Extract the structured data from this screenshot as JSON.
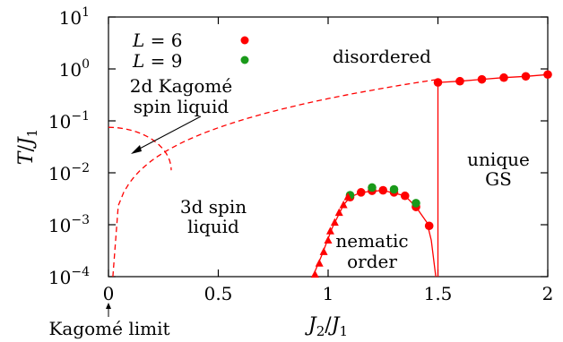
{
  "chart_data": {
    "type": "scatter",
    "xlabel": "J2/J1",
    "ylabel": "T/J1",
    "xlim": [
      0,
      2
    ],
    "ylim_log10": [
      -4,
      1
    ],
    "y_scale": "log",
    "grid": false,
    "legend_position": "top-left",
    "x_ticks": [
      "0",
      "0.5",
      "1",
      "1.5",
      "2"
    ],
    "y_ticks": [
      {
        "base": "10",
        "exp": "1"
      },
      {
        "base": "10",
        "exp": "0"
      },
      {
        "base": "10",
        "exp": "−1"
      },
      {
        "base": "10",
        "exp": "−2"
      },
      {
        "base": "10",
        "exp": "−3"
      },
      {
        "base": "10",
        "exp": "−4"
      }
    ],
    "series": [
      {
        "name": "L = 6",
        "color": "#ff0000",
        "marker": "circle",
        "points": [
          [
            1.1,
            0.0034
          ],
          [
            1.15,
            0.0042
          ],
          [
            1.2,
            0.0045
          ],
          [
            1.25,
            0.0046
          ],
          [
            1.3,
            0.0042
          ],
          [
            1.35,
            0.0036
          ],
          [
            1.4,
            0.0022
          ],
          [
            1.46,
            0.00095
          ],
          [
            1.5,
            0.55
          ],
          [
            1.6,
            0.58
          ],
          [
            1.7,
            0.63
          ],
          [
            1.8,
            0.68
          ],
          [
            1.9,
            0.72
          ],
          [
            2.0,
            0.78
          ]
        ]
      },
      {
        "name": "L = 9",
        "color": "#1a9a1a",
        "marker": "circle",
        "points": [
          [
            1.1,
            0.0037
          ],
          [
            1.2,
            0.0052
          ],
          [
            1.3,
            0.0048
          ],
          [
            1.4,
            0.0026
          ]
        ]
      },
      {
        "color": "#ff0000",
        "marker": "triangle",
        "points": [
          [
            0.94,
            0.00011
          ],
          [
            0.96,
            0.00018
          ],
          [
            0.98,
            0.0003
          ],
          [
            1.0,
            0.0005
          ],
          [
            1.01,
            0.00075
          ],
          [
            1.03,
            0.0011
          ],
          [
            1.05,
            0.0017
          ],
          [
            1.07,
            0.0024
          ],
          [
            1.09,
            0.0034
          ]
        ]
      }
    ],
    "annotations": {
      "disordered": "disordered",
      "kagome_2d_line1": "2d Kagomé",
      "kagome_2d_line2": "spin liquid",
      "spin3d_line1": "3d spin",
      "spin3d_line2": "liquid",
      "nematic_line1": "nematic",
      "nematic_line2": "order",
      "unique_line1": "unique",
      "unique_line2": "GS",
      "kagome_limit": "Kagomé limit"
    }
  }
}
